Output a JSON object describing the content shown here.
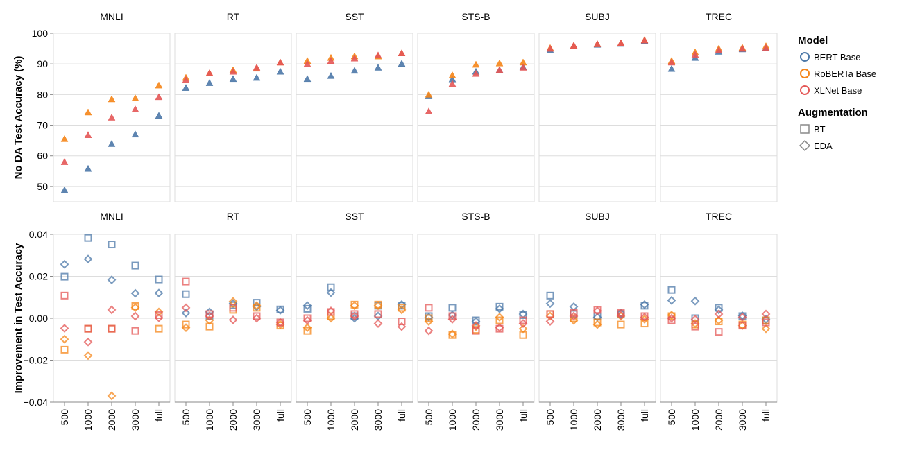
{
  "colors": {
    "bert": "#4c78a8",
    "roberta": "#f58518",
    "xlnet": "#e45756",
    "grid": "#dddddd",
    "border": "#dddddd",
    "axis": "#888888",
    "text": "#000000"
  },
  "legend": {
    "model_title": "Model",
    "models": [
      {
        "key": "bert",
        "label": "BERT Base"
      },
      {
        "key": "roberta",
        "label": "RoBERTa Base"
      },
      {
        "key": "xlnet",
        "label": "XLNet Base"
      }
    ],
    "aug_title": "Augmentation",
    "augs": [
      {
        "key": "BT",
        "label": "BT"
      },
      {
        "key": "EDA",
        "label": "EDA"
      }
    ]
  },
  "chart_data": [
    {
      "type": "scatter",
      "ylabel": "No DA Test Accuracy (%)",
      "ylim": [
        45,
        100
      ],
      "yticks": [
        50,
        60,
        70,
        80,
        90,
        100
      ],
      "grid": true,
      "categories": [
        "500",
        "1000",
        "2000",
        "3000",
        "full"
      ],
      "facets": [
        {
          "name": "MNLI",
          "series": [
            {
              "model": "bert",
              "values": [
                48.8,
                55.8,
                63.9,
                67.0,
                73.1
              ]
            },
            {
              "model": "roberta",
              "values": [
                65.5,
                74.2,
                78.5,
                78.8,
                83.0
              ]
            },
            {
              "model": "xlnet",
              "values": [
                58.0,
                66.8,
                72.5,
                75.2,
                79.2
              ]
            }
          ]
        },
        {
          "name": "RT",
          "series": [
            {
              "model": "bert",
              "values": [
                82.2,
                83.8,
                85.1,
                85.5,
                87.5
              ]
            },
            {
              "model": "roberta",
              "values": [
                85.5,
                87.0,
                88.0,
                88.5,
                90.5
              ]
            },
            {
              "model": "xlnet",
              "values": [
                84.8,
                87.0,
                87.5,
                88.8,
                90.5
              ]
            }
          ]
        },
        {
          "name": "SST",
          "series": [
            {
              "model": "bert",
              "values": [
                85.1,
                86.1,
                87.8,
                88.8,
                90.1
              ]
            },
            {
              "model": "roberta",
              "values": [
                91.0,
                92.0,
                92.5,
                92.5,
                93.5
              ]
            },
            {
              "model": "xlnet",
              "values": [
                90.0,
                91.0,
                91.8,
                92.8,
                93.5
              ]
            }
          ]
        },
        {
          "name": "STS-B",
          "series": [
            {
              "model": "bert",
              "values": [
                79.5,
                85.0,
                87.5,
                88.0,
                89.0
              ]
            },
            {
              "model": "roberta",
              "values": [
                80.0,
                86.3,
                89.8,
                90.2,
                90.5
              ]
            },
            {
              "model": "xlnet",
              "values": [
                74.5,
                83.5,
                86.8,
                88.0,
                88.8
              ]
            }
          ]
        },
        {
          "name": "SUBJ",
          "series": [
            {
              "model": "bert",
              "values": [
                94.5,
                95.8,
                96.3,
                96.6,
                97.5
              ]
            },
            {
              "model": "roberta",
              "values": [
                95.2,
                96.0,
                96.5,
                96.8,
                97.8
              ]
            },
            {
              "model": "xlnet",
              "values": [
                95.0,
                96.0,
                96.5,
                96.8,
                97.7
              ]
            }
          ]
        },
        {
          "name": "TREC",
          "series": [
            {
              "model": "bert",
              "values": [
                88.4,
                92.0,
                94.0,
                94.8,
                95.3
              ]
            },
            {
              "model": "roberta",
              "values": [
                91.0,
                93.8,
                95.0,
                95.3,
                95.8
              ]
            },
            {
              "model": "xlnet",
              "values": [
                90.5,
                93.0,
                94.5,
                95.0,
                95.2
              ]
            }
          ]
        }
      ]
    },
    {
      "type": "scatter",
      "ylabel": "Improvement in Test Accuracy",
      "ylim": [
        -0.04,
        0.04
      ],
      "yticks": [
        -0.04,
        -0.02,
        0.0,
        0.02,
        0.04
      ],
      "ytick_labels": [
        "−0.04",
        "−0.02",
        "0.00",
        "0.02",
        "0.04"
      ],
      "grid": true,
      "categories": [
        "500",
        "1000",
        "2000",
        "3000",
        "full"
      ],
      "facets": [
        {
          "name": "MNLI",
          "series": [
            {
              "model": "bert",
              "aug": "BT",
              "values": [
                0.0198,
                0.0383,
                0.0352,
                0.0251,
                0.0185
              ]
            },
            {
              "model": "bert",
              "aug": "EDA",
              "values": [
                0.0257,
                0.0282,
                0.0183,
                0.0119,
                0.012
              ]
            },
            {
              "model": "roberta",
              "aug": "BT",
              "values": [
                -0.015,
                -0.005,
                -0.005,
                0.0058,
                -0.005
              ]
            },
            {
              "model": "roberta",
              "aug": "EDA",
              "values": [
                -0.01,
                -0.0178,
                -0.037,
                0.0051,
                0.003
              ]
            },
            {
              "model": "xlnet",
              "aug": "BT",
              "values": [
                0.0108,
                -0.005,
                -0.005,
                -0.006,
                0.0015
              ]
            },
            {
              "model": "xlnet",
              "aug": "EDA",
              "values": [
                -0.0048,
                -0.0113,
                0.004,
                0.001,
                0.0002
              ]
            }
          ]
        },
        {
          "name": "RT",
          "series": [
            {
              "model": "bert",
              "aug": "BT",
              "values": [
                0.0115,
                0.001,
                0.0062,
                0.0074,
                0.0042
              ]
            },
            {
              "model": "bert",
              "aug": "EDA",
              "values": [
                0.0025,
                0.003,
                0.007,
                0.0055,
                0.0038
              ]
            },
            {
              "model": "roberta",
              "aug": "BT",
              "values": [
                -0.003,
                -0.004,
                0.004,
                0.005,
                -0.0035
              ]
            },
            {
              "model": "roberta",
              "aug": "EDA",
              "values": [
                -0.0045,
                -0.001,
                0.008,
                0.006,
                -0.003
              ]
            },
            {
              "model": "xlnet",
              "aug": "BT",
              "values": [
                0.0175,
                0.002,
                0.005,
                0.001,
                -0.002
              ]
            },
            {
              "model": "xlnet",
              "aug": "EDA",
              "values": [
                0.005,
                0.001,
                -0.0008,
                0.0,
                -0.002
              ]
            }
          ]
        },
        {
          "name": "SST",
          "series": [
            {
              "model": "bert",
              "aug": "BT",
              "values": [
                0.0045,
                0.0148,
                0.001,
                0.006,
                0.006
              ]
            },
            {
              "model": "bert",
              "aug": "EDA",
              "values": [
                0.006,
                0.0122,
                0.0,
                0.001,
                0.0065
              ]
            },
            {
              "model": "roberta",
              "aug": "BT",
              "values": [
                -0.006,
                0.001,
                0.0065,
                0.0065,
                0.005
              ]
            },
            {
              "model": "roberta",
              "aug": "EDA",
              "values": [
                -0.0045,
                0.0,
                0.006,
                0.006,
                0.004
              ]
            },
            {
              "model": "xlnet",
              "aug": "BT",
              "values": [
                0.0,
                0.003,
                0.002,
                0.002,
                -0.0015
              ]
            },
            {
              "model": "xlnet",
              "aug": "EDA",
              "values": [
                -0.001,
                0.0035,
                0.001,
                -0.0025,
                -0.004
              ]
            }
          ]
        },
        {
          "name": "STS-B",
          "series": [
            {
              "model": "bert",
              "aug": "BT",
              "values": [
                0.001,
                0.005,
                -0.001,
                0.0055,
                0.0015
              ]
            },
            {
              "model": "bert",
              "aug": "EDA",
              "values": [
                0.0005,
                0.0015,
                -0.0015,
                0.0045,
                0.002
              ]
            },
            {
              "model": "roberta",
              "aug": "BT",
              "values": [
                0.0,
                -0.008,
                -0.0055,
                -0.001,
                -0.008
              ]
            },
            {
              "model": "roberta",
              "aug": "EDA",
              "values": [
                -0.0015,
                -0.0075,
                -0.004,
                0.0005,
                -0.005
              ]
            },
            {
              "model": "xlnet",
              "aug": "BT",
              "values": [
                0.005,
                0.001,
                -0.006,
                -0.005,
                -0.001
              ]
            },
            {
              "model": "xlnet",
              "aug": "EDA",
              "values": [
                -0.006,
                -0.0005,
                -0.0035,
                -0.0045,
                -0.0025
              ]
            }
          ]
        },
        {
          "name": "SUBJ",
          "series": [
            {
              "model": "bert",
              "aug": "BT",
              "values": [
                0.0108,
                0.002,
                0.001,
                0.002,
                0.006
              ]
            },
            {
              "model": "bert",
              "aug": "EDA",
              "values": [
                0.007,
                0.0055,
                0.0005,
                0.0025,
                0.0065
              ]
            },
            {
              "model": "roberta",
              "aug": "BT",
              "values": [
                0.002,
                0.0,
                -0.002,
                -0.003,
                -0.0025
              ]
            },
            {
              "model": "roberta",
              "aug": "EDA",
              "values": [
                0.001,
                -0.001,
                -0.003,
                0.001,
                -0.0005
              ]
            },
            {
              "model": "xlnet",
              "aug": "BT",
              "values": [
                0.002,
                0.0025,
                0.004,
                0.0025,
                0.001
              ]
            },
            {
              "model": "xlnet",
              "aug": "EDA",
              "values": [
                -0.0015,
                0.001,
                0.0035,
                0.0015,
                0.0005
              ]
            }
          ]
        },
        {
          "name": "TREC",
          "series": [
            {
              "model": "bert",
              "aug": "BT",
              "values": [
                0.0135,
                0.0,
                0.005,
                0.001,
                -0.001
              ]
            },
            {
              "model": "bert",
              "aug": "EDA",
              "values": [
                0.0085,
                0.0082,
                0.004,
                0.0012,
                -0.0005
              ]
            },
            {
              "model": "roberta",
              "aug": "BT",
              "values": [
                0.001,
                -0.003,
                -0.0015,
                -0.003,
                -0.001
              ]
            },
            {
              "model": "roberta",
              "aug": "EDA",
              "values": [
                0.0015,
                -0.0025,
                -0.001,
                -0.0035,
                -0.005
              ]
            },
            {
              "model": "xlnet",
              "aug": "BT",
              "values": [
                -0.001,
                -0.004,
                -0.0065,
                -0.0035,
                -0.002
              ]
            },
            {
              "model": "xlnet",
              "aug": "EDA",
              "values": [
                0.0,
                -0.0005,
                0.002,
                0.0005,
                0.002
              ]
            }
          ]
        }
      ]
    }
  ]
}
